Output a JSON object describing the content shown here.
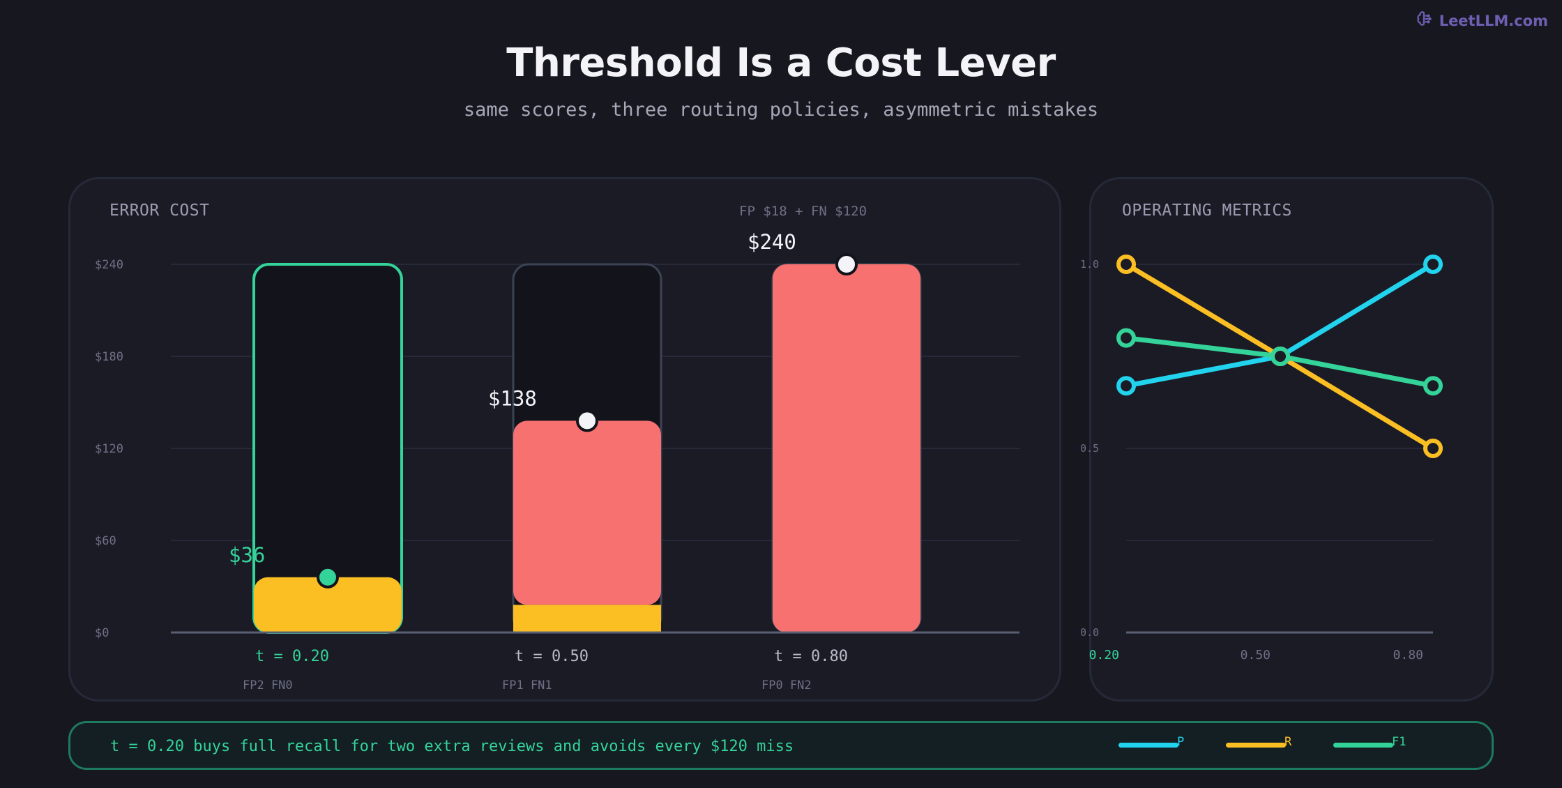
{
  "brand": {
    "name": "LeetLLM.com",
    "icon": "brain-icon",
    "color": "#6f5fb3"
  },
  "title": "Threshold Is a Cost Lever",
  "subtitle": "same scores, three routing policies, asymmetric mistakes",
  "cost_panel": {
    "title": "ERROR COST",
    "note": "FP $18 + FN $120"
  },
  "metrics_panel": {
    "title": "OPERATING METRICS"
  },
  "footer": {
    "text": "t = 0.20 buys full recall for two extra reviews and avoids every $120 miss"
  },
  "legend": [
    {
      "label": "P",
      "color": "#22d3ee"
    },
    {
      "label": "R",
      "color": "#fbbf24"
    },
    {
      "label": "F1",
      "color": "#34d399"
    }
  ],
  "colors": {
    "fp": "#fbbf24",
    "fn": "#f87171",
    "highlight": "#34d399",
    "background": "#17171f"
  },
  "chart_data": [
    {
      "type": "bar",
      "title": "ERROR COST",
      "stacked": true,
      "categories": [
        "t = 0.20",
        "t = 0.50",
        "t = 0.80"
      ],
      "sublabels": [
        "FP2 FN0",
        "FP1 FN1",
        "FP0 FN2"
      ],
      "series": [
        {
          "name": "FP",
          "values": [
            36,
            18,
            0
          ],
          "color": "#fbbf24"
        },
        {
          "name": "FN",
          "values": [
            0,
            120,
            240
          ],
          "color": "#f87171"
        }
      ],
      "totals": [
        36,
        138,
        240
      ],
      "total_labels": [
        "$36",
        "$138",
        "$240"
      ],
      "highlight_index": 0,
      "ylim": [
        0,
        240
      ],
      "yticks": [
        0,
        60,
        120,
        180,
        240
      ],
      "ytick_labels": [
        "$0",
        "$60",
        "$120",
        "$180",
        "$240"
      ],
      "grid": true
    },
    {
      "type": "line",
      "title": "OPERATING METRICS",
      "x": [
        0.2,
        0.5,
        0.8
      ],
      "xtick_labels": [
        "0.20",
        "0.50",
        "0.80"
      ],
      "highlight_index": 0,
      "series": [
        {
          "name": "P",
          "values": [
            0.67,
            0.75,
            1.0
          ],
          "color": "#22d3ee"
        },
        {
          "name": "R",
          "values": [
            1.0,
            0.75,
            0.5
          ],
          "color": "#fbbf24"
        },
        {
          "name": "F1",
          "values": [
            0.8,
            0.75,
            0.67
          ],
          "color": "#34d399"
        }
      ],
      "ylim": [
        0,
        1
      ],
      "yticks": [
        0,
        0.5,
        1.0
      ],
      "ytick_labels": [
        "0.0",
        "0.5",
        "1.0"
      ],
      "grid": true,
      "legend": "bottom-right"
    }
  ]
}
